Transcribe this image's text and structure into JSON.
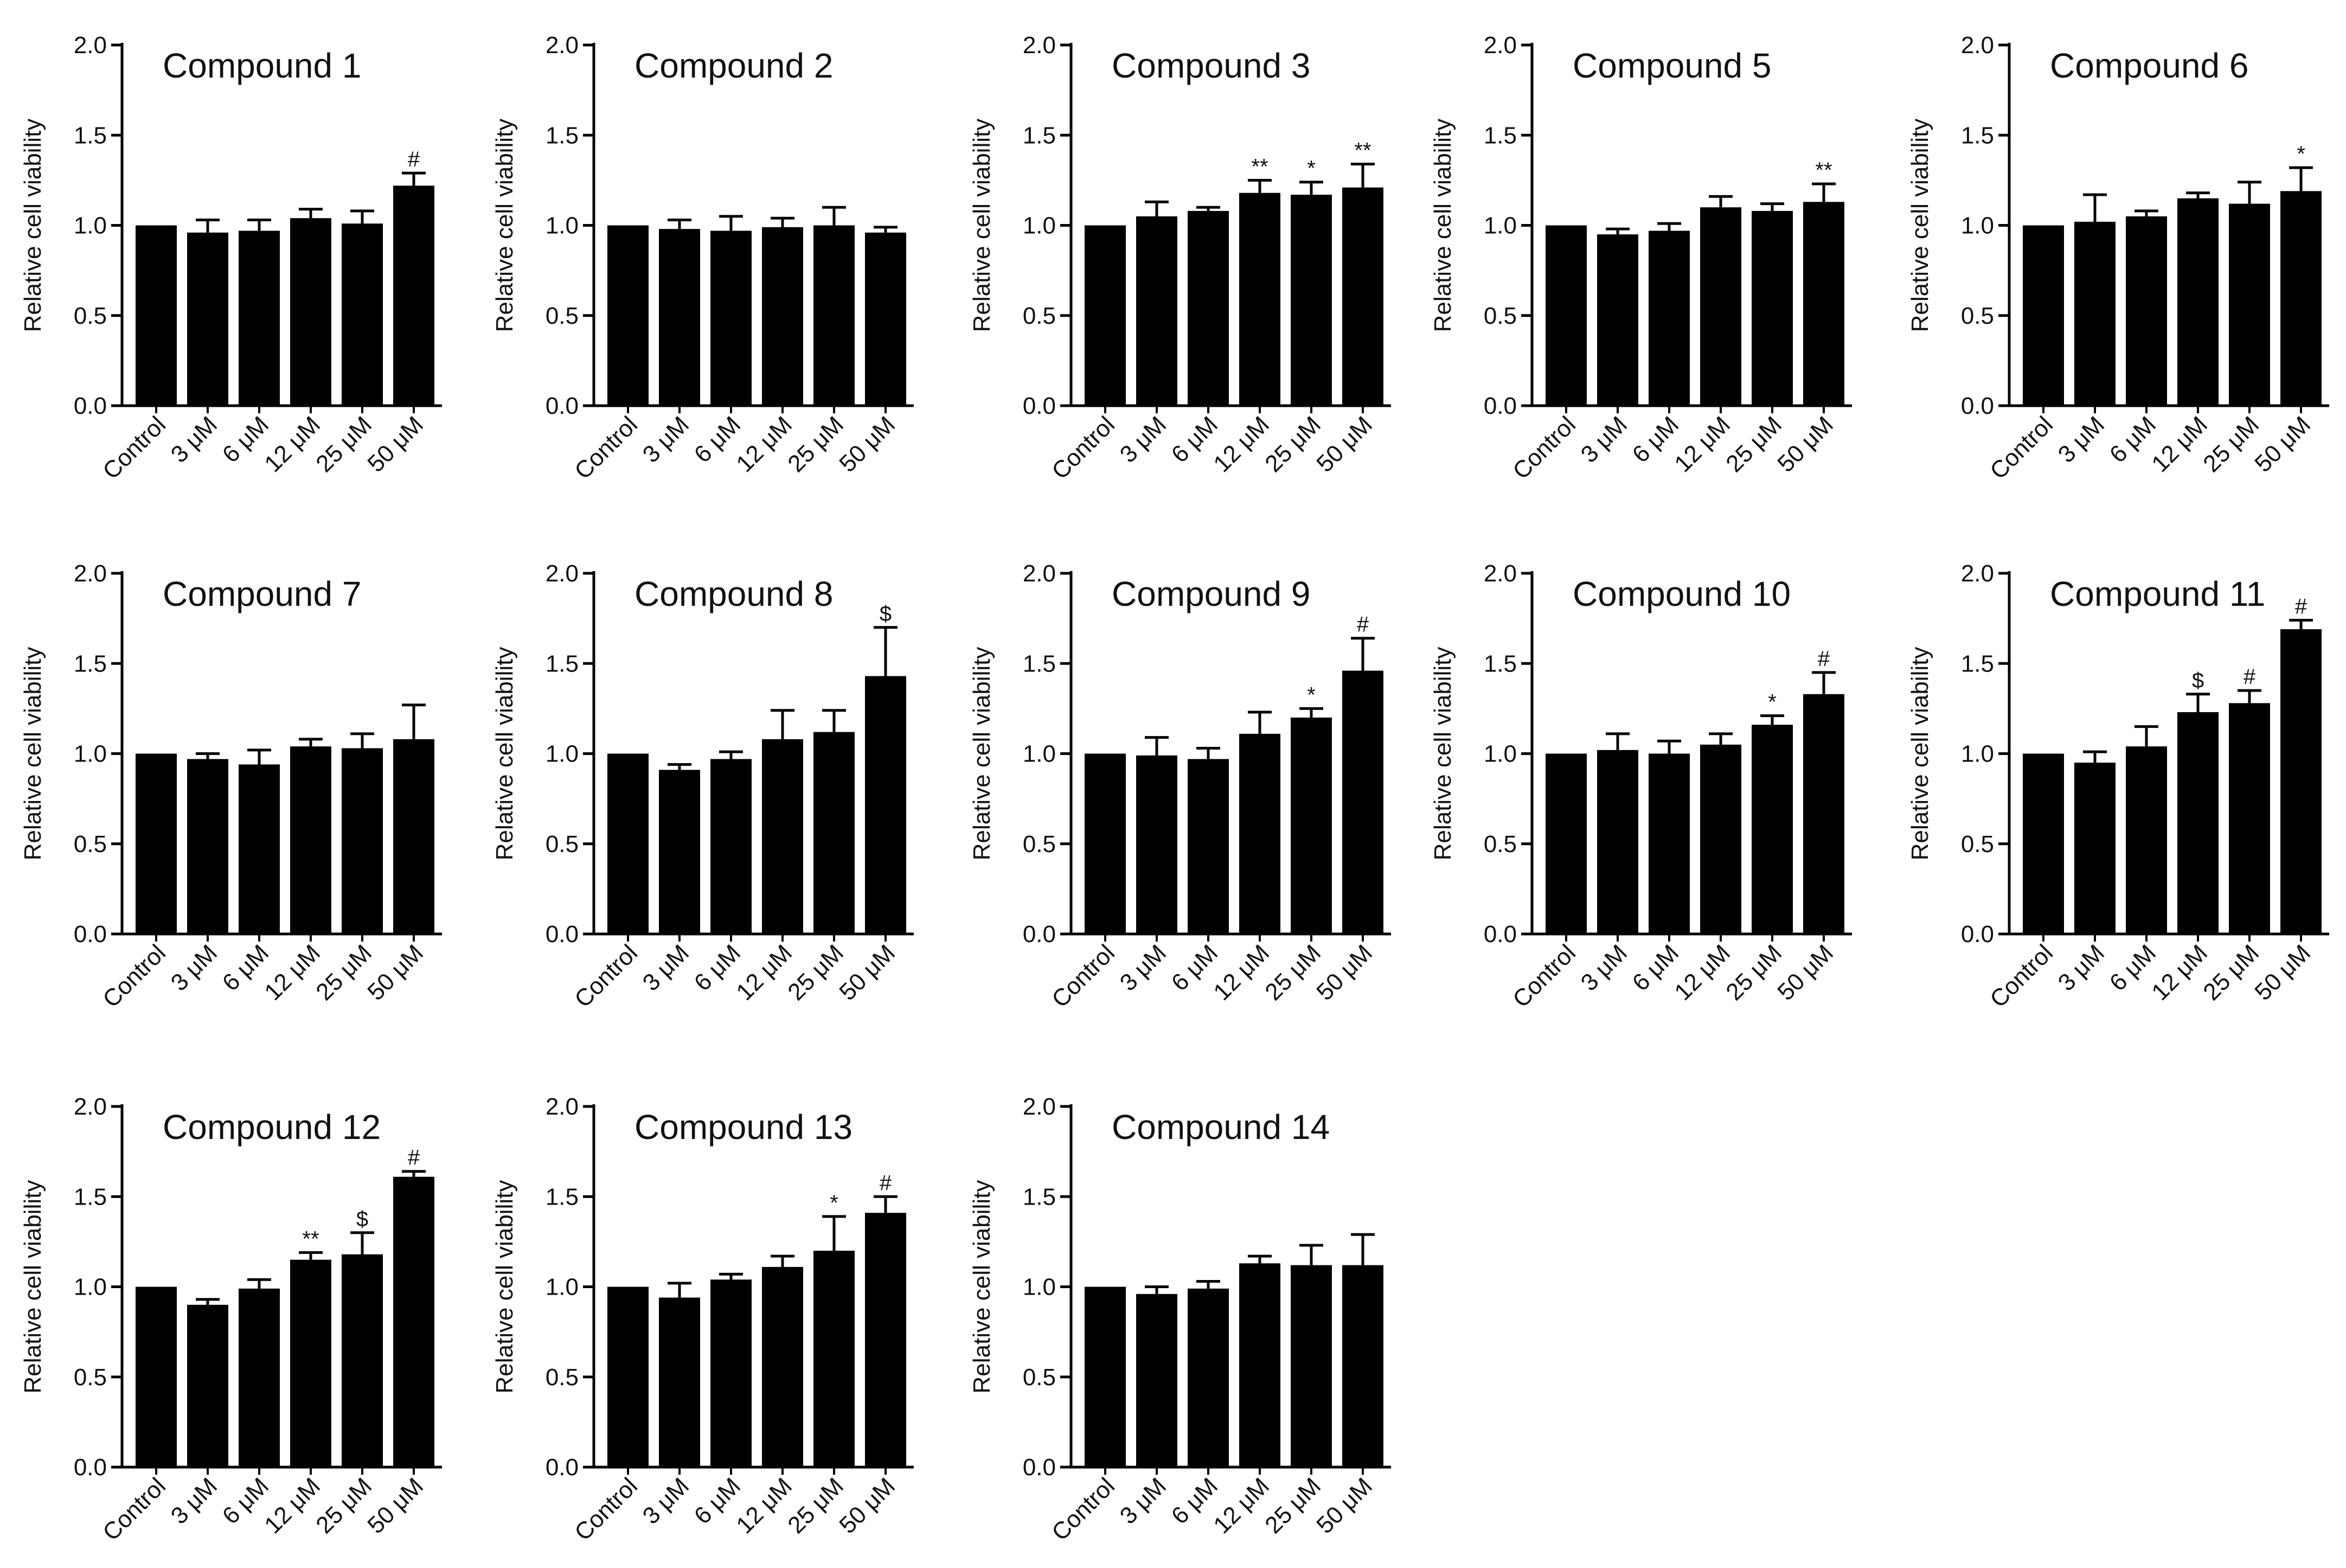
{
  "figure": {
    "bar_color": "#000000",
    "axis_color": "#000000",
    "background": "#ffffff"
  },
  "chart_data": [
    {
      "type": "bar",
      "title": "Compound 1",
      "xlabel": "",
      "ylabel": "Relative cell viability",
      "ylim": [
        0,
        2.0
      ],
      "yticks": [
        "0.0",
        "0.5",
        "1.0",
        "1.5",
        "2.0"
      ],
      "categories": [
        "Control",
        "3 μM",
        "6 μM",
        "12 μM",
        "25 μM",
        "50 μM"
      ],
      "values": [
        1.0,
        0.96,
        0.97,
        1.04,
        1.01,
        1.22
      ],
      "errors": [
        0,
        0.07,
        0.06,
        0.05,
        0.07,
        0.07
      ],
      "annotations": [
        "",
        "",
        "",
        "",
        "",
        "#"
      ]
    },
    {
      "type": "bar",
      "title": "Compound 2",
      "xlabel": "",
      "ylabel": "Relative cell viability",
      "ylim": [
        0,
        2.0
      ],
      "yticks": [
        "0.0",
        "0.5",
        "1.0",
        "1.5",
        "2.0"
      ],
      "categories": [
        "Control",
        "3 μM",
        "6 μM",
        "12 μM",
        "25 μM",
        "50 μM"
      ],
      "values": [
        1.0,
        0.98,
        0.97,
        0.99,
        1.0,
        0.96
      ],
      "errors": [
        0,
        0.05,
        0.08,
        0.05,
        0.1,
        0.03
      ],
      "annotations": [
        "",
        "",
        "",
        "",
        "",
        ""
      ]
    },
    {
      "type": "bar",
      "title": "Compound 3",
      "xlabel": "",
      "ylabel": "Relative cell viability",
      "ylim": [
        0,
        2.0
      ],
      "yticks": [
        "0.0",
        "0.5",
        "1.0",
        "1.5",
        "2.0"
      ],
      "categories": [
        "Control",
        "3 μM",
        "6 μM",
        "12 μM",
        "25 μM",
        "50 μM"
      ],
      "values": [
        1.0,
        1.05,
        1.08,
        1.18,
        1.17,
        1.21
      ],
      "errors": [
        0,
        0.08,
        0.02,
        0.07,
        0.07,
        0.13
      ],
      "annotations": [
        "",
        "",
        "",
        "**",
        "*",
        "**"
      ]
    },
    {
      "type": "bar",
      "title": "Compound 5",
      "xlabel": "",
      "ylabel": "Relative cell viability",
      "ylim": [
        0,
        2.0
      ],
      "yticks": [
        "0.0",
        "0.5",
        "1.0",
        "1.5",
        "2.0"
      ],
      "categories": [
        "Control",
        "3 μM",
        "6 μM",
        "12 μM",
        "25 μM",
        "50 μM"
      ],
      "values": [
        1.0,
        0.95,
        0.97,
        1.1,
        1.08,
        1.13
      ],
      "errors": [
        0,
        0.03,
        0.04,
        0.06,
        0.04,
        0.1
      ],
      "annotations": [
        "",
        "",
        "",
        "",
        "",
        "**"
      ]
    },
    {
      "type": "bar",
      "title": "Compound 6",
      "xlabel": "",
      "ylabel": "Relative cell viability",
      "ylim": [
        0,
        2.0
      ],
      "yticks": [
        "0.0",
        "0.5",
        "1.0",
        "1.5",
        "2.0"
      ],
      "categories": [
        "Control",
        "3 μM",
        "6 μM",
        "12 μM",
        "25 μM",
        "50 μM"
      ],
      "values": [
        1.0,
        1.02,
        1.05,
        1.15,
        1.12,
        1.19
      ],
      "errors": [
        0,
        0.15,
        0.03,
        0.03,
        0.12,
        0.13
      ],
      "annotations": [
        "",
        "",
        "",
        "",
        "",
        "*"
      ]
    },
    {
      "type": "bar",
      "title": "Compound 7",
      "xlabel": "",
      "ylabel": "Relative cell viability",
      "ylim": [
        0,
        2.0
      ],
      "yticks": [
        "0.0",
        "0.5",
        "1.0",
        "1.5",
        "2.0"
      ],
      "categories": [
        "Control",
        "3 μM",
        "6 μM",
        "12 μM",
        "25 μM",
        "50 μM"
      ],
      "values": [
        1.0,
        0.97,
        0.94,
        1.04,
        1.03,
        1.08
      ],
      "errors": [
        0,
        0.03,
        0.08,
        0.04,
        0.08,
        0.19
      ],
      "annotations": [
        "",
        "",
        "",
        "",
        "",
        ""
      ]
    },
    {
      "type": "bar",
      "title": "Compound 8",
      "xlabel": "",
      "ylabel": "Relative cell viability",
      "ylim": [
        0,
        2.0
      ],
      "yticks": [
        "0.0",
        "0.5",
        "1.0",
        "1.5",
        "2.0"
      ],
      "categories": [
        "Control",
        "3 μM",
        "6 μM",
        "12 μM",
        "25 μM",
        "50 μM"
      ],
      "values": [
        1.0,
        0.91,
        0.97,
        1.08,
        1.12,
        1.43
      ],
      "errors": [
        0,
        0.03,
        0.04,
        0.16,
        0.12,
        0.27
      ],
      "annotations": [
        "",
        "",
        "",
        "",
        "",
        "$"
      ]
    },
    {
      "type": "bar",
      "title": "Compound 9",
      "xlabel": "",
      "ylabel": "Relative cell viability",
      "ylim": [
        0,
        2.0
      ],
      "yticks": [
        "0.0",
        "0.5",
        "1.0",
        "1.5",
        "2.0"
      ],
      "categories": [
        "Control",
        "3 μM",
        "6 μM",
        "12 μM",
        "25 μM",
        "50 μM"
      ],
      "values": [
        1.0,
        0.99,
        0.97,
        1.11,
        1.2,
        1.46
      ],
      "errors": [
        0,
        0.1,
        0.06,
        0.12,
        0.05,
        0.18
      ],
      "annotations": [
        "",
        "",
        "",
        "",
        "*",
        "#"
      ]
    },
    {
      "type": "bar",
      "title": "Compound 10",
      "xlabel": "",
      "ylabel": "Relative cell viability",
      "ylim": [
        0,
        2.0
      ],
      "yticks": [
        "0.0",
        "0.5",
        "1.0",
        "1.5",
        "2.0"
      ],
      "categories": [
        "Control",
        "3 μM",
        "6 μM",
        "12 μM",
        "25 μM",
        "50 μM"
      ],
      "values": [
        1.0,
        1.02,
        1.0,
        1.05,
        1.16,
        1.33
      ],
      "errors": [
        0,
        0.09,
        0.07,
        0.06,
        0.05,
        0.12
      ],
      "annotations": [
        "",
        "",
        "",
        "",
        "*",
        "#"
      ]
    },
    {
      "type": "bar",
      "title": "Compound 11",
      "xlabel": "",
      "ylabel": "Relative cell viability",
      "ylim": [
        0,
        2.0
      ],
      "yticks": [
        "0.0",
        "0.5",
        "1.0",
        "1.5",
        "2.0"
      ],
      "categories": [
        "Control",
        "3 μM",
        "6 μM",
        "12 μM",
        "25 μM",
        "50 μM"
      ],
      "values": [
        1.0,
        0.95,
        1.04,
        1.23,
        1.28,
        1.69
      ],
      "errors": [
        0,
        0.06,
        0.11,
        0.1,
        0.07,
        0.05
      ],
      "annotations": [
        "",
        "",
        "",
        "$",
        "#",
        "#"
      ]
    },
    {
      "type": "bar",
      "title": "Compound 12",
      "xlabel": "",
      "ylabel": "Relative cell viability",
      "ylim": [
        0,
        2.0
      ],
      "yticks": [
        "0.0",
        "0.5",
        "1.0",
        "1.5",
        "2.0"
      ],
      "categories": [
        "Control",
        "3 μM",
        "6 μM",
        "12 μM",
        "25 μM",
        "50 μM"
      ],
      "values": [
        1.0,
        0.9,
        0.99,
        1.15,
        1.18,
        1.61
      ],
      "errors": [
        0,
        0.03,
        0.05,
        0.04,
        0.12,
        0.03
      ],
      "annotations": [
        "",
        "",
        "",
        "**",
        "$",
        "#"
      ]
    },
    {
      "type": "bar",
      "title": "Compound 13",
      "xlabel": "",
      "ylabel": "Relative cell viability",
      "ylim": [
        0,
        2.0
      ],
      "yticks": [
        "0.0",
        "0.5",
        "1.0",
        "1.5",
        "2.0"
      ],
      "categories": [
        "Control",
        "3 μM",
        "6 μM",
        "12 μM",
        "25 μM",
        "50 μM"
      ],
      "values": [
        1.0,
        0.94,
        1.04,
        1.11,
        1.2,
        1.41
      ],
      "errors": [
        0,
        0.08,
        0.03,
        0.06,
        0.19,
        0.09
      ],
      "annotations": [
        "",
        "",
        "",
        "",
        "*",
        "#"
      ]
    },
    {
      "type": "bar",
      "title": "Compound 14",
      "xlabel": "",
      "ylabel": "Relative cell viability",
      "ylim": [
        0,
        2.0
      ],
      "yticks": [
        "0.0",
        "0.5",
        "1.0",
        "1.5",
        "2.0"
      ],
      "categories": [
        "Control",
        "3 μM",
        "6 μM",
        "12 μM",
        "25 μM",
        "50 μM"
      ],
      "values": [
        1.0,
        0.96,
        0.99,
        1.13,
        1.12,
        1.12
      ],
      "errors": [
        0,
        0.04,
        0.04,
        0.04,
        0.11,
        0.17
      ],
      "annotations": [
        "",
        "",
        "",
        "",
        "",
        ""
      ]
    }
  ]
}
